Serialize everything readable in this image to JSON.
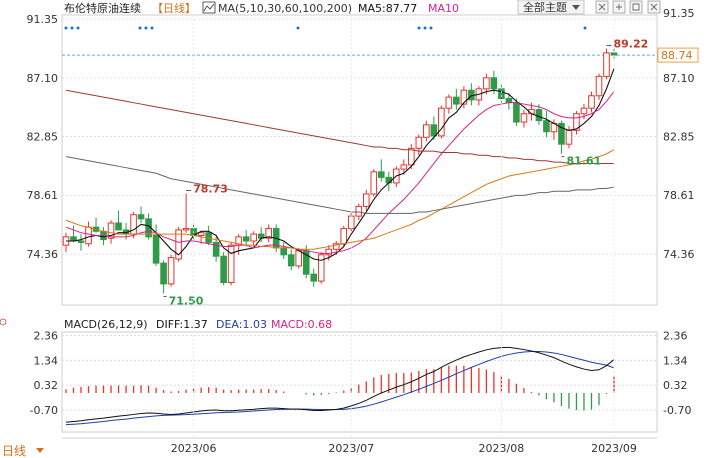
{
  "chart_data": {
    "type": "candlestick",
    "title": "布伦特原油连续",
    "period": "日线",
    "ma_label": "MA(5,10,30,60,100,200)",
    "ma5_label": "MA5:87.77",
    "ma10_label": "MA10",
    "theme_button": "全部主题",
    "price_axis_ticks": [
      "91.35",
      "87.10",
      "82.85",
      "78.61",
      "74.36"
    ],
    "current_price_tag": "88.74",
    "current_price": 88.74,
    "annotations": {
      "high_label": "89.22",
      "high": 89.22,
      "low_label": "71.50",
      "low": 71.5,
      "local_high_label": "78.73",
      "local_high": 78.73,
      "local_low_label": "81.61",
      "local_low": 81.61
    },
    "candles": [
      [
        75.0,
        75.9,
        74.5,
        75.6
      ],
      [
        75.6,
        76.4,
        75.2,
        75.3
      ],
      [
        75.3,
        75.8,
        74.6,
        75.2
      ],
      [
        75.1,
        76.7,
        74.9,
        76.3
      ],
      [
        76.3,
        77.0,
        75.9,
        76.0
      ],
      [
        76.0,
        76.3,
        75.0,
        75.4
      ],
      [
        75.5,
        76.8,
        75.1,
        76.6
      ],
      [
        76.6,
        77.5,
        76.2,
        76.1
      ],
      [
        76.1,
        76.6,
        75.4,
        75.8
      ],
      [
        75.8,
        77.4,
        75.5,
        77.2
      ],
      [
        77.2,
        77.8,
        76.6,
        76.9
      ],
      [
        76.9,
        77.3,
        75.4,
        75.6
      ],
      [
        75.7,
        76.5,
        73.5,
        73.7
      ],
      [
        73.7,
        73.9,
        71.5,
        72.2
      ],
      [
        72.2,
        74.3,
        72.0,
        74.1
      ],
      [
        74.0,
        76.3,
        73.8,
        76.1
      ],
      [
        76.1,
        78.73,
        75.9,
        76.2
      ],
      [
        76.2,
        76.6,
        75.3,
        75.7
      ],
      [
        75.7,
        76.0,
        75.1,
        75.9
      ],
      [
        75.9,
        76.4,
        75.0,
        75.2
      ],
      [
        75.2,
        75.6,
        73.8,
        74.2
      ],
      [
        74.2,
        74.5,
        72.1,
        72.3
      ],
      [
        72.3,
        75.2,
        72.1,
        75.0
      ],
      [
        75.0,
        75.8,
        74.3,
        75.6
      ],
      [
        75.6,
        76.1,
        74.9,
        75.3
      ],
      [
        75.3,
        76.0,
        74.9,
        75.8
      ],
      [
        75.8,
        76.3,
        75.2,
        75.5
      ],
      [
        75.5,
        76.5,
        75.2,
        76.2
      ],
      [
        76.2,
        76.5,
        74.5,
        74.8
      ],
      [
        74.8,
        75.2,
        74.0,
        74.3
      ],
      [
        74.3,
        74.7,
        73.2,
        73.5
      ],
      [
        73.5,
        74.8,
        73.3,
        74.6
      ],
      [
        74.6,
        75.0,
        72.6,
        72.9
      ],
      [
        72.9,
        73.3,
        72.0,
        72.4
      ],
      [
        72.4,
        74.5,
        72.2,
        74.3
      ],
      [
        74.3,
        75.0,
        73.9,
        74.7
      ],
      [
        74.7,
        75.3,
        74.3,
        75.1
      ],
      [
        75.1,
        76.4,
        74.9,
        76.2
      ],
      [
        76.2,
        77.3,
        76.0,
        77.1
      ],
      [
        77.1,
        78.0,
        76.8,
        77.8
      ],
      [
        77.8,
        79.0,
        77.5,
        78.7
      ],
      [
        78.7,
        80.5,
        78.5,
        80.3
      ],
      [
        80.3,
        81.2,
        79.6,
        79.9
      ],
      [
        79.9,
        80.3,
        78.9,
        79.5
      ],
      [
        79.5,
        80.7,
        79.2,
        80.5
      ],
      [
        80.5,
        81.2,
        80.1,
        80.8
      ],
      [
        80.8,
        82.3,
        80.5,
        82.0
      ],
      [
        82.0,
        83.0,
        81.5,
        82.8
      ],
      [
        82.8,
        84.0,
        82.5,
        83.7
      ],
      [
        83.7,
        84.3,
        82.6,
        82.9
      ],
      [
        82.9,
        85.1,
        82.7,
        84.9
      ],
      [
        84.9,
        85.9,
        84.5,
        85.7
      ],
      [
        85.7,
        86.3,
        84.8,
        85.2
      ],
      [
        85.2,
        86.5,
        84.9,
        86.2
      ],
      [
        86.2,
        86.7,
        85.1,
        85.5
      ],
      [
        85.5,
        86.5,
        85.1,
        86.3
      ],
      [
        86.3,
        87.4,
        85.9,
        87.1
      ],
      [
        87.1,
        87.6,
        85.9,
        86.3
      ],
      [
        86.3,
        86.7,
        85.3,
        85.6
      ],
      [
        85.6,
        86.0,
        84.8,
        85.3
      ],
      [
        85.3,
        85.6,
        83.6,
        83.9
      ],
      [
        83.9,
        84.8,
        83.5,
        84.5
      ],
      [
        84.5,
        85.3,
        84.0,
        84.8
      ],
      [
        84.8,
        85.2,
        83.7,
        84.0
      ],
      [
        84.0,
        84.7,
        82.8,
        83.2
      ],
      [
        83.2,
        84.1,
        82.6,
        83.8
      ],
      [
        83.8,
        84.0,
        81.61,
        82.3
      ],
      [
        82.3,
        83.6,
        82.0,
        83.3
      ],
      [
        83.3,
        84.7,
        83.0,
        84.5
      ],
      [
        84.5,
        85.2,
        84.1,
        84.9
      ],
      [
        84.9,
        86.1,
        84.6,
        85.8
      ],
      [
        85.8,
        87.4,
        85.5,
        87.2
      ],
      [
        87.2,
        89.22,
        87.0,
        88.9
      ],
      [
        88.9,
        89.2,
        88.5,
        88.74
      ]
    ],
    "ma_lines": [
      {
        "name": "MA5",
        "color": "#111111",
        "values": [
          75.3,
          75.3,
          75.4,
          75.6,
          75.7,
          75.6,
          75.7,
          75.9,
          75.9,
          76.1,
          76.5,
          76.4,
          75.9,
          75.3,
          74.7,
          74.3,
          74.9,
          75.7,
          76.0,
          76.0,
          75.7,
          74.8,
          74.4,
          74.6,
          74.7,
          74.8,
          75.5,
          75.6,
          75.5,
          75.3,
          74.9,
          74.6,
          74.3,
          74.0,
          73.9,
          74.1,
          74.4,
          74.9,
          75.8,
          76.6,
          77.4,
          78.3,
          79.0,
          79.5,
          80.0,
          80.2,
          80.7,
          81.4,
          82.2,
          82.8,
          83.4,
          84.2,
          84.6,
          85.3,
          85.8,
          85.9,
          86.1,
          86.2,
          86.1,
          85.9,
          85.4,
          85.0,
          84.5,
          84.3,
          84.1,
          83.8,
          83.5,
          83.3,
          83.4,
          83.8,
          84.3,
          85.1,
          86.3,
          87.77
        ]
      },
      {
        "name": "MA10",
        "color": "#d6218c",
        "values": [
          76.3,
          76.1,
          75.9,
          75.8,
          75.7,
          75.7,
          75.6,
          75.6,
          75.6,
          75.7,
          75.9,
          76.0,
          75.9,
          75.6,
          75.4,
          75.2,
          75.3,
          75.3,
          75.2,
          75.1,
          75.0,
          74.9,
          74.9,
          75.0,
          75.0,
          74.8,
          74.9,
          75.0,
          75.0,
          74.9,
          74.8,
          74.7,
          74.6,
          74.5,
          74.4,
          74.4,
          74.5,
          74.6,
          74.8,
          75.1,
          75.5,
          76.1,
          76.7,
          77.3,
          77.8,
          78.3,
          78.9,
          79.5,
          80.2,
          80.9,
          81.6,
          82.2,
          82.8,
          83.4,
          83.9,
          84.4,
          84.8,
          85.1,
          85.2,
          85.3,
          85.3,
          85.2,
          85.1,
          85.0,
          84.8,
          84.5,
          84.3,
          84.2,
          84.2,
          84.3,
          84.5,
          84.8,
          85.4,
          86.1
        ]
      },
      {
        "name": "MA30",
        "color": "#d87a14",
        "values": [
          76.8,
          76.6,
          76.4,
          76.3,
          76.1,
          76.0,
          75.9,
          75.8,
          75.8,
          75.8,
          75.8,
          75.8,
          75.8,
          75.8,
          75.8,
          75.8,
          75.8,
          75.7,
          75.6,
          75.5,
          75.4,
          75.3,
          75.2,
          75.1,
          75.0,
          75.0,
          74.9,
          74.9,
          74.8,
          74.8,
          74.8,
          74.7,
          74.7,
          74.7,
          74.8,
          74.9,
          75.0,
          75.1,
          75.2,
          75.3,
          75.4,
          75.5,
          75.7,
          75.9,
          76.1,
          76.3,
          76.5,
          76.8,
          77.0,
          77.3,
          77.6,
          77.9,
          78.2,
          78.5,
          78.8,
          79.1,
          79.4,
          79.6,
          79.8,
          80.0,
          80.1,
          80.2,
          80.3,
          80.4,
          80.5,
          80.6,
          80.7,
          80.8,
          80.9,
          81.1,
          81.2,
          81.4,
          81.6,
          81.9
        ]
      },
      {
        "name": "MA60",
        "color": "#666666",
        "values": [
          81.4,
          81.3,
          81.2,
          81.1,
          81.0,
          80.9,
          80.8,
          80.7,
          80.6,
          80.5,
          80.4,
          80.3,
          80.2,
          80.0,
          79.8,
          79.7,
          79.6,
          79.5,
          79.4,
          79.3,
          79.2,
          79.1,
          79.0,
          78.9,
          78.8,
          78.7,
          78.6,
          78.5,
          78.4,
          78.3,
          78.2,
          78.1,
          78.0,
          77.9,
          77.8,
          77.7,
          77.6,
          77.5,
          77.4,
          77.4,
          77.3,
          77.3,
          77.3,
          77.3,
          77.3,
          77.3,
          77.3,
          77.4,
          77.4,
          77.5,
          77.6,
          77.7,
          77.8,
          77.9,
          78.0,
          78.1,
          78.2,
          78.3,
          78.4,
          78.5,
          78.6,
          78.6,
          78.7,
          78.8,
          78.8,
          78.9,
          78.9,
          78.9,
          79.0,
          79.0,
          79.0,
          79.1,
          79.1,
          79.2
        ]
      },
      {
        "name": "MA100",
        "color": "#9c3a2e",
        "values": [
          86.2,
          86.1,
          86.0,
          85.9,
          85.8,
          85.7,
          85.6,
          85.5,
          85.4,
          85.3,
          85.2,
          85.1,
          85.0,
          84.9,
          84.8,
          84.7,
          84.6,
          84.5,
          84.4,
          84.3,
          84.2,
          84.1,
          84.0,
          83.9,
          83.8,
          83.7,
          83.6,
          83.5,
          83.4,
          83.3,
          83.2,
          83.1,
          83.0,
          82.9,
          82.8,
          82.7,
          82.6,
          82.5,
          82.4,
          82.3,
          82.2,
          82.1,
          82.1,
          82.0,
          82.0,
          81.9,
          81.9,
          81.8,
          81.8,
          81.8,
          81.7,
          81.7,
          81.7,
          81.6,
          81.6,
          81.5,
          81.5,
          81.4,
          81.4,
          81.3,
          81.3,
          81.2,
          81.2,
          81.1,
          81.1,
          81.0,
          81.0,
          80.9,
          80.9,
          80.9,
          80.9,
          80.9,
          80.9,
          80.9
        ]
      }
    ],
    "x_axis_labels": [
      {
        "label": "2023/06",
        "index": 17
      },
      {
        "label": "2023/07",
        "index": 38
      },
      {
        "label": "2023/08",
        "index": 58
      },
      {
        "label": "2023/09",
        "index": 73
      }
    ],
    "macd": {
      "label": "MACD(26,12,9)",
      "diff_label": "DIFF:1.37",
      "dea_label": "DEA:1.03",
      "macd_label": "MACD:0.68",
      "axis_ticks": [
        "2.36",
        "1.34",
        "0.32",
        "-0.70"
      ],
      "ylim": [
        -1.6,
        2.5
      ],
      "diff": [
        -1.2,
        -1.17,
        -1.14,
        -1.1,
        -1.06,
        -1.03,
        -0.99,
        -0.95,
        -0.92,
        -0.88,
        -0.84,
        -0.82,
        -0.83,
        -0.86,
        -0.88,
        -0.86,
        -0.82,
        -0.78,
        -0.74,
        -0.71,
        -0.7,
        -0.73,
        -0.73,
        -0.71,
        -0.69,
        -0.67,
        -0.64,
        -0.62,
        -0.62,
        -0.64,
        -0.66,
        -0.66,
        -0.69,
        -0.72,
        -0.72,
        -0.7,
        -0.67,
        -0.62,
        -0.53,
        -0.43,
        -0.3,
        -0.14,
        0.0,
        0.12,
        0.24,
        0.34,
        0.46,
        0.6,
        0.76,
        0.88,
        1.05,
        1.21,
        1.35,
        1.48,
        1.58,
        1.68,
        1.77,
        1.83,
        1.86,
        1.87,
        1.83,
        1.78,
        1.72,
        1.65,
        1.55,
        1.45,
        1.31,
        1.18,
        1.07,
        0.98,
        0.92,
        0.95,
        1.12,
        1.37
      ],
      "dea": [
        -1.3,
        -1.28,
        -1.26,
        -1.23,
        -1.2,
        -1.17,
        -1.13,
        -1.1,
        -1.07,
        -1.03,
        -1.0,
        -0.97,
        -0.94,
        -0.92,
        -0.91,
        -0.9,
        -0.89,
        -0.87,
        -0.85,
        -0.83,
        -0.81,
        -0.8,
        -0.79,
        -0.78,
        -0.76,
        -0.74,
        -0.72,
        -0.7,
        -0.68,
        -0.67,
        -0.66,
        -0.66,
        -0.66,
        -0.67,
        -0.68,
        -0.68,
        -0.68,
        -0.67,
        -0.64,
        -0.6,
        -0.54,
        -0.46,
        -0.37,
        -0.27,
        -0.17,
        -0.07,
        0.04,
        0.15,
        0.27,
        0.39,
        0.52,
        0.65,
        0.79,
        0.92,
        1.05,
        1.17,
        1.29,
        1.4,
        1.5,
        1.58,
        1.64,
        1.68,
        1.7,
        1.7,
        1.68,
        1.64,
        1.58,
        1.5,
        1.42,
        1.34,
        1.26,
        1.2,
        1.14,
        1.03
      ],
      "histogram": [
        0.15,
        0.22,
        0.25,
        0.28,
        0.3,
        0.3,
        0.3,
        0.31,
        0.3,
        0.3,
        0.32,
        0.3,
        0.22,
        0.12,
        0.06,
        0.08,
        0.14,
        0.18,
        0.22,
        0.24,
        0.22,
        0.14,
        0.12,
        0.14,
        0.14,
        0.14,
        0.16,
        0.16,
        0.12,
        0.06,
        0.0,
        0.0,
        -0.06,
        -0.1,
        -0.08,
        -0.04,
        0.02,
        0.1,
        0.22,
        0.34,
        0.48,
        0.64,
        0.74,
        0.78,
        0.82,
        0.82,
        0.84,
        0.9,
        0.98,
        0.98,
        1.06,
        1.12,
        1.12,
        1.12,
        1.06,
        1.02,
        0.96,
        0.86,
        0.72,
        0.58,
        0.38,
        0.2,
        0.04,
        -0.1,
        -0.26,
        -0.38,
        -0.54,
        -0.64,
        -0.7,
        -0.72,
        -0.68,
        -0.5,
        -0.04,
        0.68
      ]
    }
  }
}
